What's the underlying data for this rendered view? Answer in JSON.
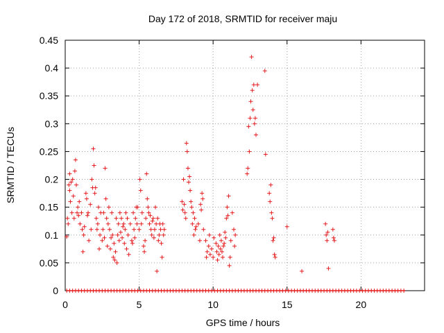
{
  "chart_data": {
    "type": "scatter",
    "title": "Day 172 of 2018, SRMTID for receiver maju",
    "xlabel": "GPS time / hours",
    "ylabel": "SRMTID / TECUs",
    "xlim": [
      0,
      24.3
    ],
    "ylim": [
      0,
      0.45
    ],
    "x_ticks": [
      0,
      5,
      10,
      15,
      20
    ],
    "y_ticks": [
      0,
      0.05,
      0.1,
      0.15,
      0.2,
      0.25,
      0.3,
      0.35,
      0.4,
      0.45
    ],
    "grid": true,
    "marker": "+",
    "marker_color": "#e41a1c",
    "zero_band": [
      0.1,
      23.0
    ],
    "series": [
      {
        "name": "SRMTID",
        "points": [
          [
            0.1,
            0.097
          ],
          [
            0.15,
            0.13
          ],
          [
            0.2,
            0.12
          ],
          [
            0.25,
            0.19
          ],
          [
            0.3,
            0.21
          ],
          [
            0.3,
            0.18
          ],
          [
            0.35,
            0.16
          ],
          [
            0.4,
            0.195
          ],
          [
            0.45,
            0.14
          ],
          [
            0.5,
            0.2
          ],
          [
            0.55,
            0.17
          ],
          [
            0.6,
            0.13
          ],
          [
            0.65,
            0.215
          ],
          [
            0.7,
            0.235
          ],
          [
            0.75,
            0.19
          ],
          [
            0.8,
            0.14
          ],
          [
            0.85,
            0.15
          ],
          [
            0.9,
            0.135
          ],
          [
            0.95,
            0.16
          ],
          [
            1.0,
            0.12
          ],
          [
            1.1,
            0.14
          ],
          [
            1.15,
            0.11
          ],
          [
            1.2,
            0.07
          ],
          [
            1.25,
            0.1
          ],
          [
            1.3,
            0.115
          ],
          [
            1.4,
            0.175
          ],
          [
            1.45,
            0.165
          ],
          [
            1.5,
            0.135
          ],
          [
            1.55,
            0.14
          ],
          [
            1.6,
            0.09
          ],
          [
            1.7,
            0.155
          ],
          [
            1.75,
            0.11
          ],
          [
            1.8,
            0.2
          ],
          [
            1.85,
            0.185
          ],
          [
            1.9,
            0.255
          ],
          [
            1.95,
            0.225
          ],
          [
            2.0,
            0.175
          ],
          [
            2.05,
            0.185
          ],
          [
            2.1,
            0.13
          ],
          [
            2.15,
            0.11
          ],
          [
            2.2,
            0.12
          ],
          [
            2.25,
            0.15
          ],
          [
            2.3,
            0.075
          ],
          [
            2.35,
            0.1
          ],
          [
            2.4,
            0.14
          ],
          [
            2.5,
            0.09
          ],
          [
            2.55,
            0.11
          ],
          [
            2.6,
            0.14
          ],
          [
            2.65,
            0.095
          ],
          [
            2.7,
            0.22
          ],
          [
            2.75,
            0.165
          ],
          [
            2.8,
            0.13
          ],
          [
            2.85,
            0.08
          ],
          [
            2.9,
            0.12
          ],
          [
            2.95,
            0.15
          ],
          [
            3.0,
            0.11
          ],
          [
            3.05,
            0.075
          ],
          [
            3.1,
            0.095
          ],
          [
            3.15,
            0.14
          ],
          [
            3.2,
            0.1
          ],
          [
            3.25,
            0.06
          ],
          [
            3.3,
            0.085
          ],
          [
            3.35,
            0.055
          ],
          [
            3.4,
            0.07
          ],
          [
            3.45,
            0.13
          ],
          [
            3.5,
            0.05
          ],
          [
            3.55,
            0.1
          ],
          [
            3.6,
            0.12
          ],
          [
            3.65,
            0.09
          ],
          [
            3.7,
            0.14
          ],
          [
            3.75,
            0.105
          ],
          [
            3.8,
            0.13
          ],
          [
            3.85,
            0.095
          ],
          [
            3.9,
            0.115
          ],
          [
            3.95,
            0.12
          ],
          [
            4.0,
            0.085
          ],
          [
            4.05,
            0.11
          ],
          [
            4.1,
            0.14
          ],
          [
            4.15,
            0.075
          ],
          [
            4.2,
            0.13
          ],
          [
            4.25,
            0.1
          ],
          [
            4.3,
            0.065
          ],
          [
            4.4,
            0.12
          ],
          [
            4.5,
            0.09
          ],
          [
            4.55,
            0.085
          ],
          [
            4.6,
            0.14
          ],
          [
            4.65,
            0.11
          ],
          [
            4.7,
            0.095
          ],
          [
            4.75,
            0.13
          ],
          [
            4.8,
            0.15
          ],
          [
            4.85,
            0.12
          ],
          [
            4.9,
            0.15
          ],
          [
            5.0,
            0.11
          ],
          [
            5.05,
            0.2
          ],
          [
            5.1,
            0.18
          ],
          [
            5.15,
            0.12
          ],
          [
            5.2,
            0.14
          ],
          [
            5.3,
            0.08
          ],
          [
            5.35,
            0.07
          ],
          [
            5.4,
            0.09
          ],
          [
            5.45,
            0.13
          ],
          [
            5.5,
            0.21
          ],
          [
            5.55,
            0.165
          ],
          [
            5.6,
            0.15
          ],
          [
            5.65,
            0.14
          ],
          [
            5.7,
            0.12
          ],
          [
            5.75,
            0.135
          ],
          [
            5.8,
            0.11
          ],
          [
            5.85,
            0.1
          ],
          [
            5.9,
            0.125
          ],
          [
            5.95,
            0.13
          ],
          [
            6.0,
            0.095
          ],
          [
            6.05,
            0.11
          ],
          [
            6.1,
            0.15
          ],
          [
            6.15,
            0.12
          ],
          [
            6.2,
            0.035
          ],
          [
            6.25,
            0.13
          ],
          [
            6.3,
            0.09
          ],
          [
            6.35,
            0.1
          ],
          [
            6.4,
            0.12
          ],
          [
            6.45,
            0.11
          ],
          [
            6.5,
            0.085
          ],
          [
            6.55,
            0.06
          ],
          [
            6.6,
            0.12
          ],
          [
            6.65,
            0.1
          ],
          [
            6.7,
            0.11
          ],
          [
            7.9,
            0.16
          ],
          [
            7.95,
            0.145
          ],
          [
            8.0,
            0.2
          ],
          [
            8.05,
            0.155
          ],
          [
            8.1,
            0.14
          ],
          [
            8.15,
            0.13
          ],
          [
            8.2,
            0.265
          ],
          [
            8.25,
            0.25
          ],
          [
            8.3,
            0.22
          ],
          [
            8.35,
            0.195
          ],
          [
            8.4,
            0.205
          ],
          [
            8.45,
            0.18
          ],
          [
            8.5,
            0.16
          ],
          [
            8.55,
            0.15
          ],
          [
            8.6,
            0.12
          ],
          [
            8.65,
            0.14
          ],
          [
            8.7,
            0.1
          ],
          [
            8.75,
            0.13
          ],
          [
            8.8,
            0.11
          ],
          [
            8.85,
            0.115
          ],
          [
            9.0,
            0.12
          ],
          [
            9.1,
            0.09
          ],
          [
            9.15,
            0.155
          ],
          [
            9.2,
            0.145
          ],
          [
            9.25,
            0.175
          ],
          [
            9.3,
            0.165
          ],
          [
            9.35,
            0.11
          ],
          [
            9.5,
            0.09
          ],
          [
            9.55,
            0.06
          ],
          [
            9.6,
            0.07
          ],
          [
            9.7,
            0.08
          ],
          [
            9.75,
            0.1
          ],
          [
            9.8,
            0.065
          ],
          [
            9.9,
            0.075
          ],
          [
            10.0,
            0.06
          ],
          [
            10.05,
            0.095
          ],
          [
            10.2,
            0.085
          ],
          [
            10.25,
            0.07
          ],
          [
            10.3,
            0.055
          ],
          [
            10.35,
            0.08
          ],
          [
            10.4,
            0.065
          ],
          [
            10.45,
            0.1
          ],
          [
            10.5,
            0.075
          ],
          [
            10.55,
            0.09
          ],
          [
            10.6,
            0.07
          ],
          [
            10.65,
            0.06
          ],
          [
            10.7,
            0.08
          ],
          [
            10.75,
            0.085
          ],
          [
            10.8,
            0.105
          ],
          [
            10.85,
            0.095
          ],
          [
            10.9,
            0.13
          ],
          [
            10.95,
            0.15
          ],
          [
            11.0,
            0.135
          ],
          [
            11.05,
            0.17
          ],
          [
            11.1,
            0.045
          ],
          [
            11.15,
            0.06
          ],
          [
            11.2,
            0.09
          ],
          [
            11.3,
            0.14
          ],
          [
            11.4,
            0.11
          ],
          [
            11.45,
            0.08
          ],
          [
            11.5,
            0.1
          ],
          [
            12.3,
            0.21
          ],
          [
            12.35,
            0.22
          ],
          [
            12.4,
            0.295
          ],
          [
            12.45,
            0.25
          ],
          [
            12.5,
            0.31
          ],
          [
            12.55,
            0.34
          ],
          [
            12.6,
            0.42
          ],
          [
            12.65,
            0.36
          ],
          [
            12.7,
            0.325
          ],
          [
            12.75,
            0.37
          ],
          [
            12.8,
            0.3
          ],
          [
            12.85,
            0.31
          ],
          [
            12.9,
            0.28
          ],
          [
            13.0,
            0.37
          ],
          [
            13.5,
            0.395
          ],
          [
            13.55,
            0.245
          ],
          [
            13.8,
            0.175
          ],
          [
            13.85,
            0.16
          ],
          [
            13.9,
            0.19
          ],
          [
            13.95,
            0.14
          ],
          [
            14.0,
            0.13
          ],
          [
            14.05,
            0.09
          ],
          [
            14.1,
            0.095
          ],
          [
            14.15,
            0.065
          ],
          [
            14.2,
            0.06
          ],
          [
            15.0,
            0.115
          ],
          [
            16.0,
            0.035
          ],
          [
            17.6,
            0.12
          ],
          [
            17.65,
            0.1
          ],
          [
            17.7,
            0.09
          ],
          [
            17.75,
            0.105
          ],
          [
            17.8,
            0.04
          ],
          [
            18.1,
            0.11
          ],
          [
            18.15,
            0.095
          ],
          [
            18.2,
            0.09
          ]
        ]
      }
    ]
  }
}
